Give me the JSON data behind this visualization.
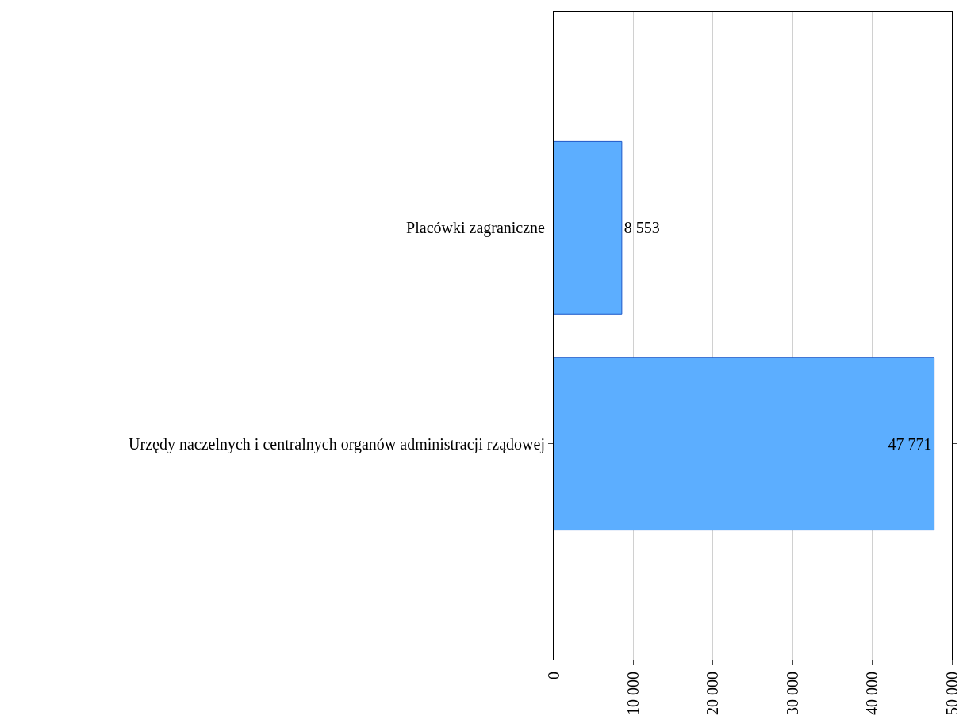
{
  "chart_data": {
    "type": "bar",
    "orientation": "horizontal",
    "categories": [
      "Placówki zagraniczne",
      "Urzędy naczelnych i centralnych organów administracji rządowej"
    ],
    "values": [
      8553,
      47771
    ],
    "value_labels": [
      "8 553",
      "47 771"
    ],
    "color": "#5caeff",
    "xlim": [
      0,
      50000
    ],
    "xticks": [
      0,
      {
        "value": 10000,
        "label": "10 000"
      },
      {
        "value": 20000,
        "label": "20 000"
      },
      {
        "value": 30000,
        "label": "30 000"
      },
      {
        "value": 40000,
        "label": "40 000"
      },
      {
        "value": 50000,
        "label": "50 000"
      }
    ],
    "grid": "x"
  }
}
